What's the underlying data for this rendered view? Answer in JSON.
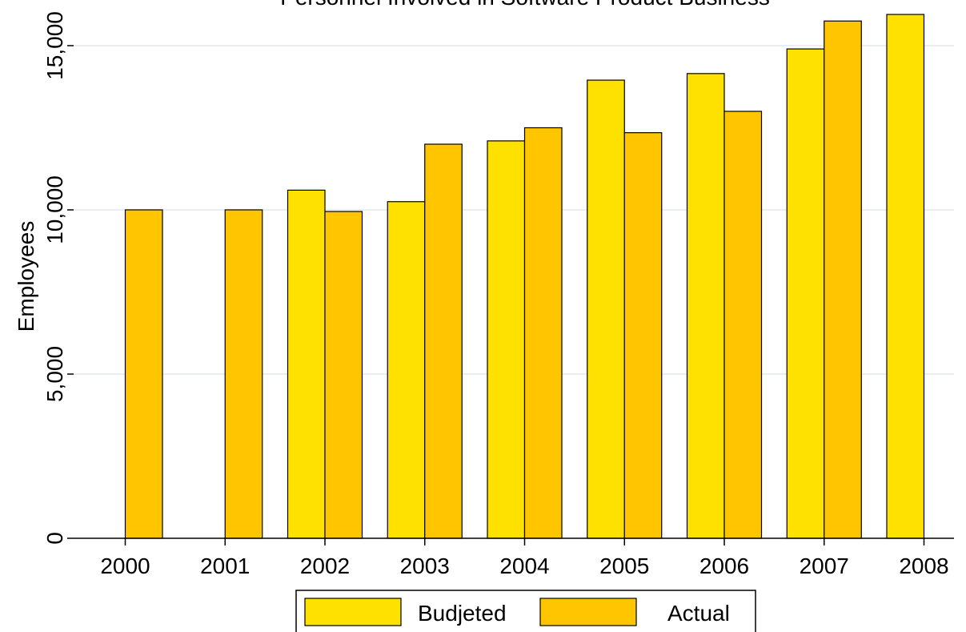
{
  "chart_data": {
    "type": "bar",
    "title": "Personnel Involved in Software Product Business",
    "xlabel": "",
    "ylabel": "Employees",
    "categories": [
      "2000",
      "2001",
      "2002",
      "2003",
      "2004",
      "2005",
      "2006",
      "2007",
      "2008"
    ],
    "series": [
      {
        "name": "Budjeted",
        "color": "#ffe100",
        "values": [
          null,
          null,
          10600,
          10250,
          12100,
          13950,
          14150,
          14900,
          15950
        ]
      },
      {
        "name": "Actual",
        "color": "#ffc600",
        "values": [
          10000,
          10000,
          9950,
          12000,
          12500,
          12350,
          13000,
          15750,
          null
        ]
      }
    ],
    "ylim": [
      0,
      16000
    ],
    "yticks": [
      0,
      5000,
      10000,
      15000
    ],
    "ytick_labels": [
      "0",
      "5,000",
      "10,000",
      "15,000"
    ],
    "grid": true,
    "legend_position": "bottom-center"
  }
}
